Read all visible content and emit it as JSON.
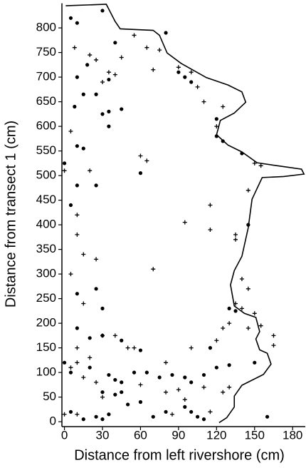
{
  "chart_data": {
    "type": "scatter",
    "x_label": "Distance from left rivershore (cm)",
    "y_label": "Distance from transect 1 (cm)",
    "xlim": [
      -2,
      190
    ],
    "ylim": [
      -10,
      850
    ],
    "xticks": [
      0,
      30,
      60,
      90,
      120,
      150,
      180
    ],
    "yticks": [
      0,
      50,
      100,
      150,
      200,
      250,
      300,
      350,
      400,
      450,
      500,
      550,
      600,
      650,
      700,
      750,
      800
    ],
    "grid": false,
    "series": [
      {
        "marker": "dot",
        "color": "#000000",
        "x": [
          5,
          10,
          30,
          40,
          18,
          10,
          15,
          25,
          8,
          35,
          35,
          30,
          45,
          35,
          80,
          90,
          95,
          100,
          120,
          120,
          125,
          140,
          10,
          15,
          0,
          60,
          10,
          25,
          5,
          10,
          25,
          30,
          10,
          20,
          30,
          45,
          60,
          0,
          5,
          20,
          35,
          40,
          45,
          55,
          65,
          75,
          85,
          95,
          100,
          110,
          115,
          120,
          40,
          45,
          30,
          50,
          60,
          70,
          80,
          95,
          100,
          105,
          110,
          25,
          30,
          35,
          15,
          5,
          130,
          135,
          130,
          145,
          150,
          160
        ],
        "values": [
          820,
          810,
          835,
          770,
          725,
          700,
          665,
          665,
          640,
          695,
          630,
          625,
          635,
          600,
          790,
          710,
          700,
          690,
          615,
          580,
          570,
          545,
          560,
          555,
          525,
          505,
          480,
          480,
          440,
          260,
          270,
          230,
          190,
          170,
          175,
          165,
          145,
          120,
          100,
          110,
          95,
          85,
          80,
          100,
          100,
          90,
          95,
          90,
          80,
          95,
          150,
          110,
          55,
          60,
          60,
          35,
          40,
          10,
          20,
          30,
          20,
          10,
          5,
          10,
          5,
          15,
          5,
          20,
          230,
          225,
          115,
          400,
          120,
          10
        ]
      },
      {
        "marker": "cross",
        "color": "#000000",
        "x": [
          8,
          20,
          25,
          45,
          35,
          40,
          30,
          55,
          65,
          75,
          70,
          90,
          100,
          105,
          110,
          125,
          120,
          60,
          65,
          5,
          0,
          20,
          10,
          10,
          15,
          25,
          5,
          15,
          10,
          20,
          30,
          40,
          50,
          55,
          70,
          95,
          115,
          115,
          135,
          135,
          140,
          145,
          135,
          140,
          150,
          145,
          155,
          165,
          165,
          125,
          130,
          0,
          10,
          5,
          10,
          15,
          25,
          30,
          60,
          80,
          90,
          110,
          130,
          125,
          95,
          85,
          115,
          150,
          155,
          145,
          100,
          120,
          80
        ],
        "values": [
          760,
          745,
          735,
          740,
          710,
          705,
          690,
          785,
          760,
          755,
          715,
          720,
          710,
          680,
          650,
          640,
          600,
          540,
          530,
          590,
          510,
          510,
          420,
          380,
          340,
          330,
          300,
          240,
          150,
          130,
          175,
          175,
          150,
          150,
          310,
          405,
          390,
          440,
          380,
          370,
          290,
          270,
          240,
          230,
          220,
          190,
          195,
          175,
          155,
          190,
          200,
          15,
          15,
          110,
          120,
          90,
          80,
          50,
          75,
          60,
          65,
          70,
          70,
          60,
          45,
          15,
          20,
          525,
          520,
          470,
          150,
          165,
          120
        ]
      },
      {
        "marker": "outline",
        "color": "#000000",
        "x": [
          1,
          33,
          40,
          44,
          70,
          75,
          81,
          92,
          112,
          129,
          140,
          143,
          134,
          123,
          120,
          129,
          140,
          152,
          168,
          187,
          189,
          173,
          156,
          148,
          145,
          140,
          134,
          131,
          134,
          142,
          151,
          154,
          151,
          154,
          160,
          163,
          157,
          140,
          134,
          134,
          128,
          122
        ],
        "values": [
          845,
          848,
          813,
          798,
          795,
          785,
          749,
          728,
          699,
          684,
          670,
          649,
          627,
          612,
          583,
          562,
          548,
          526,
          520,
          513,
          503,
          498,
          496,
          452,
          394,
          336,
          307,
          278,
          235,
          220,
          212,
          183,
          168,
          146,
          139,
          117,
          96,
          74,
          52,
          30,
          8,
          -2
        ]
      }
    ]
  }
}
